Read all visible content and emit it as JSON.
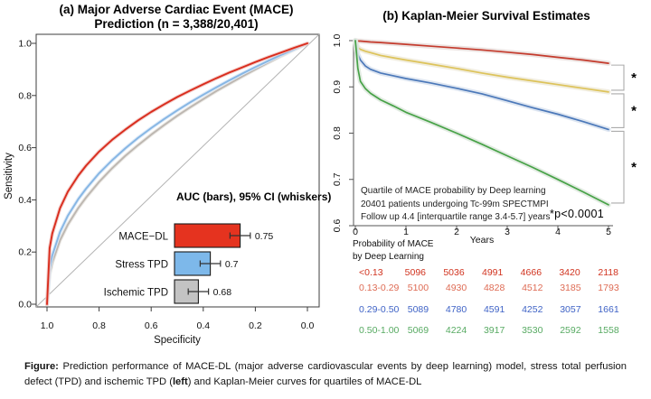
{
  "chart_data": [
    {
      "type": "line",
      "subtype": "roc",
      "title_line1": "(a) Major Adverse Cardiac Event (MACE)",
      "title_line2": "Prediction (n = 3,388/20,401)",
      "xlabel": "Specificity",
      "ylabel": "Sensitivity",
      "x_tick_labels": [
        "1.0",
        "0.8",
        "0.6",
        "0.4",
        "0.2",
        "0.0"
      ],
      "y_tick_labels": [
        "1.0",
        "0.8",
        "0.6",
        "0.4",
        "0.2",
        "0.0"
      ],
      "x_axis_note": "specificity shown reversed from 1.0 to 0.0",
      "diagonal_reference_line": true,
      "series": [
        {
          "name": "MACE−DL",
          "color": "#d92c1d",
          "band_color": "#f2c7c2",
          "one_minus_specificity": [
            0,
            0.01,
            0.02,
            0.05,
            0.08,
            0.12,
            0.15,
            0.2,
            0.25,
            0.3,
            0.35,
            0.4,
            0.45,
            0.5,
            0.55,
            0.6,
            0.65,
            0.7,
            0.75,
            0.8,
            0.85,
            0.9,
            0.95,
            1
          ],
          "sensitivity": [
            0,
            0.215,
            0.271,
            0.368,
            0.431,
            0.493,
            0.531,
            0.585,
            0.63,
            0.669,
            0.705,
            0.737,
            0.766,
            0.794,
            0.819,
            0.843,
            0.866,
            0.888,
            0.908,
            0.928,
            0.947,
            0.965,
            0.983,
            1
          ]
        },
        {
          "name": "Stress TPD",
          "color": "#86b6e4",
          "band_color": "#d9e8f7",
          "one_minus_specificity": [
            0,
            0.01,
            0.02,
            0.05,
            0.08,
            0.12,
            0.15,
            0.2,
            0.25,
            0.3,
            0.35,
            0.4,
            0.45,
            0.5,
            0.55,
            0.6,
            0.65,
            0.7,
            0.75,
            0.8,
            0.85,
            0.9,
            0.95,
            1
          ],
          "sensitivity": [
            0,
            0.139,
            0.187,
            0.277,
            0.339,
            0.403,
            0.443,
            0.502,
            0.552,
            0.597,
            0.638,
            0.675,
            0.71,
            0.743,
            0.774,
            0.803,
            0.831,
            0.858,
            0.884,
            0.909,
            0.933,
            0.956,
            0.978,
            1
          ]
        },
        {
          "name": "Ischemic TPD",
          "color": "#bdb7b1",
          "band_color": "#e8e5e1",
          "one_minus_specificity": [
            0,
            0.01,
            0.02,
            0.05,
            0.08,
            0.12,
            0.15,
            0.2,
            0.25,
            0.3,
            0.35,
            0.4,
            0.45,
            0.5,
            0.55,
            0.6,
            0.65,
            0.7,
            0.75,
            0.8,
            0.85,
            0.9,
            0.95,
            1
          ],
          "sensitivity": [
            0,
            0.115,
            0.159,
            0.245,
            0.305,
            0.369,
            0.409,
            0.469,
            0.521,
            0.568,
            0.61,
            0.65,
            0.687,
            0.722,
            0.755,
            0.786,
            0.817,
            0.845,
            0.873,
            0.9,
            0.926,
            0.952,
            0.976,
            1
          ]
        }
      ],
      "inset": {
        "heading": "AUC (bars), 95% CI (whiskers)",
        "bars": [
          {
            "label": "MACE−DL",
            "auc": 0.75,
            "ci_half": 0.017,
            "value_display": "0.75",
            "color": "#e5331f"
          },
          {
            "label": "Stress TPD",
            "auc": 0.7,
            "ci_half": 0.017,
            "value_display": "0.7",
            "color": "#7db8ea"
          },
          {
            "label": "Ischemic TPD",
            "auc": 0.68,
            "ci_half": 0.017,
            "value_display": "0.68",
            "color": "#c3c3c3"
          }
        ]
      }
    },
    {
      "type": "line",
      "subtype": "kaplan-meier",
      "title": "(b) Kaplan-Meier Survival Estimates",
      "xlabel": "Years",
      "x_tick_labels": [
        "0",
        "1",
        "2",
        "3",
        "4",
        "5"
      ],
      "y_tick_labels": [
        "1.0",
        "0.9",
        "0.8",
        "0.7",
        "0.6"
      ],
      "ylim": [
        0.6,
        1.0
      ],
      "xlim": [
        0,
        5
      ],
      "times": [
        0,
        0.05,
        0.1,
        0.2,
        0.3,
        0.5,
        0.75,
        1,
        1.5,
        2,
        2.5,
        3,
        3.5,
        4,
        4.5,
        5
      ],
      "series": [
        {
          "name": "<0.13",
          "color": "#c43a2c",
          "band_color": "#e9dedc",
          "survival": [
            1,
            0.999,
            0.999,
            0.998,
            0.997,
            0.996,
            0.994,
            0.992,
            0.988,
            0.984,
            0.98,
            0.975,
            0.97,
            0.964,
            0.958,
            0.951
          ]
        },
        {
          "name": "0.13-0.29",
          "color": "#ddc35a",
          "band_color": "#eeead8",
          "survival": [
            1,
            0.985,
            0.981,
            0.977,
            0.974,
            0.968,
            0.963,
            0.958,
            0.949,
            0.94,
            0.93,
            0.921,
            0.913,
            0.905,
            0.897,
            0.889
          ]
        },
        {
          "name": "0.29-0.50",
          "color": "#4b78b9",
          "band_color": "#d8e2ef",
          "survival": [
            1,
            0.97,
            0.958,
            0.945,
            0.938,
            0.93,
            0.924,
            0.918,
            0.908,
            0.897,
            0.885,
            0.87,
            0.855,
            0.841,
            0.825,
            0.808
          ]
        },
        {
          "name": "0.50-1.00",
          "color": "#47a247",
          "band_color": "#dde8dd",
          "survival": [
            1,
            0.94,
            0.912,
            0.896,
            0.886,
            0.872,
            0.859,
            0.845,
            0.823,
            0.8,
            0.776,
            0.751,
            0.726,
            0.7,
            0.673,
            0.645
          ]
        }
      ],
      "sig_markers": [
        "*",
        "*",
        "*"
      ],
      "annotation_lines": [
        "Quartile of MACE probability by Deep learning",
        "20401 patients undergoing Tc-99m SPECTMPI",
        "Follow up 4.4 [interquartile range 3.4-5.7] years"
      ],
      "p_label": "*p<0.0001",
      "risk_table": {
        "header_line1": "Probability of MACE",
        "header_line2": "by Deep Learning",
        "rows": [
          {
            "label": "<0.13",
            "color": "#d1331f",
            "counts": [
              5096,
              5036,
              4991,
              4666,
              3420,
              2118
            ]
          },
          {
            "label": "0.13-0.29",
            "color": "#de6b54",
            "counts": [
              5100,
              4930,
              4828,
              4512,
              3185,
              1793
            ]
          },
          {
            "label": "0.29-0.50",
            "color": "#3f63c6",
            "counts": [
              5089,
              4780,
              4591,
              4252,
              3057,
              1661
            ]
          },
          {
            "label": "0.50-1.00",
            "color": "#57aa62",
            "counts": [
              5069,
              4224,
              3917,
              3530,
              2592,
              1558
            ]
          }
        ]
      }
    }
  ],
  "caption": {
    "prefix": "Figure:",
    "body1": " Prediction performance of MACE-DL (major adverse cardiovascular events by deep learning) model, stress total perfusion defect (TPD) and ischemic TPD (",
    "bold_word": "left",
    "body2": ") and Kaplan-Meier curves for quartiles of MACE-DL"
  }
}
